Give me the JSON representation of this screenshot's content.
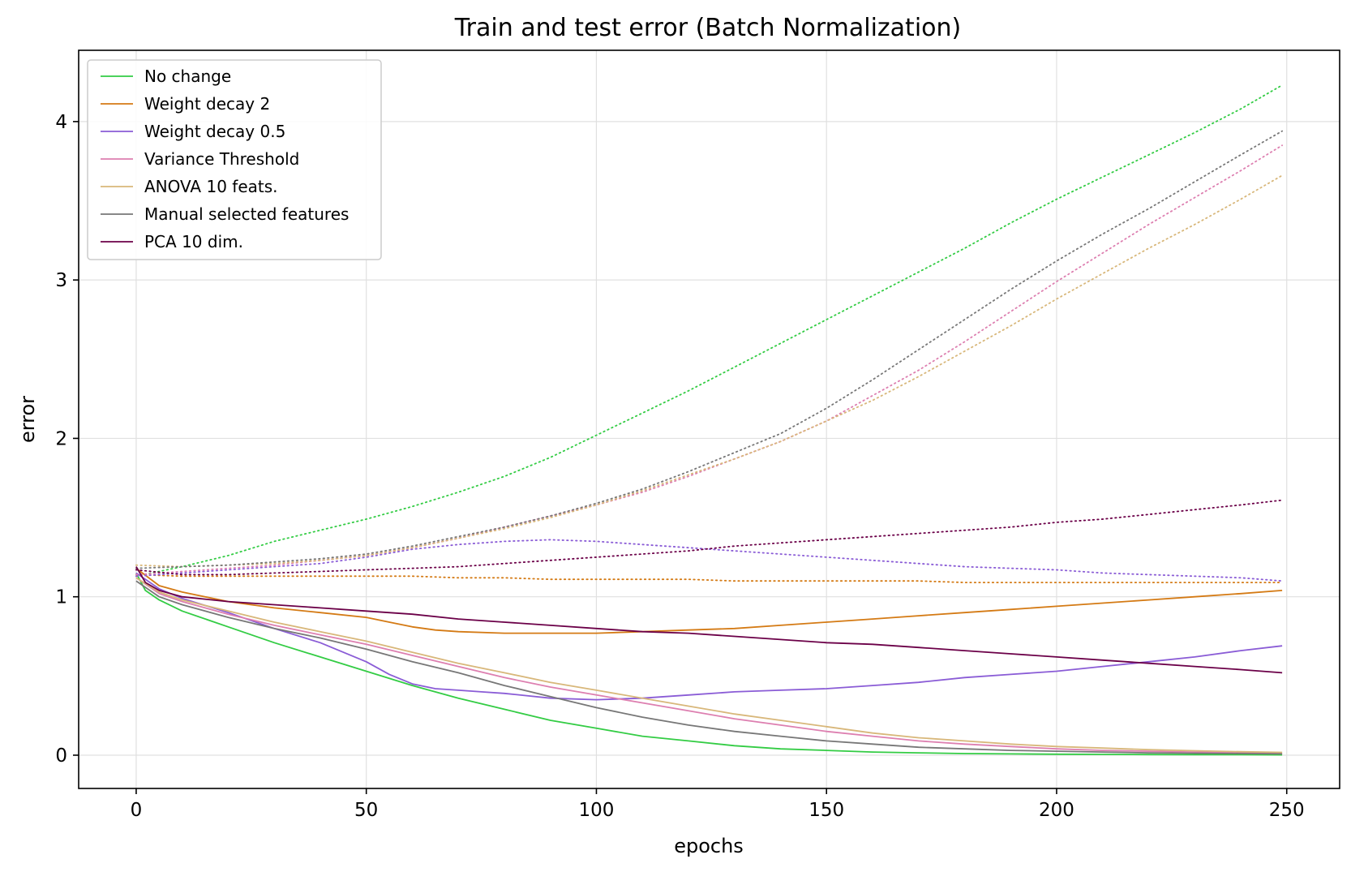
{
  "chart_data": {
    "type": "line",
    "title": "Train and test error (Batch Normalization)",
    "xlabel": "epochs",
    "ylabel": "error",
    "xlim": [
      -12.5,
      261.5
    ],
    "ylim": [
      -0.21,
      4.45
    ],
    "xticks": [
      0,
      50,
      100,
      150,
      200,
      250
    ],
    "yticks": [
      0,
      1,
      2,
      3,
      4
    ],
    "grid": true,
    "legend_position": "top-left",
    "line_styles": {
      "train": "solid",
      "test": "dotted"
    },
    "series": [
      {
        "name": "No change",
        "color": "#33cc44",
        "train": {
          "x": [
            0,
            2,
            5,
            10,
            20,
            30,
            40,
            50,
            60,
            70,
            80,
            90,
            100,
            110,
            120,
            130,
            140,
            150,
            160,
            170,
            180,
            190,
            200,
            210,
            220,
            230,
            240,
            249
          ],
          "y": [
            1.15,
            1.04,
            0.98,
            0.91,
            0.81,
            0.71,
            0.62,
            0.53,
            0.44,
            0.36,
            0.29,
            0.22,
            0.17,
            0.12,
            0.09,
            0.06,
            0.04,
            0.03,
            0.02,
            0.015,
            0.01,
            0.008,
            0.006,
            0.005,
            0.004,
            0.003,
            0.003,
            0.002
          ]
        },
        "test": {
          "x": [
            0,
            10,
            20,
            30,
            40,
            50,
            60,
            70,
            80,
            90,
            100,
            110,
            120,
            130,
            140,
            150,
            160,
            170,
            180,
            190,
            200,
            210,
            220,
            230,
            240,
            249
          ],
          "y": [
            1.13,
            1.19,
            1.26,
            1.35,
            1.42,
            1.49,
            1.57,
            1.66,
            1.76,
            1.88,
            2.02,
            2.16,
            2.3,
            2.45,
            2.6,
            2.75,
            2.9,
            3.05,
            3.2,
            3.36,
            3.51,
            3.65,
            3.79,
            3.93,
            4.08,
            4.23
          ]
        }
      },
      {
        "name": "Weight decay 2",
        "color": "#d47a14",
        "train": {
          "x": [
            0,
            5,
            10,
            20,
            30,
            40,
            50,
            55,
            60,
            65,
            70,
            80,
            90,
            100,
            110,
            120,
            130,
            140,
            150,
            160,
            170,
            180,
            190,
            200,
            210,
            220,
            230,
            240,
            249
          ],
          "y": [
            1.18,
            1.07,
            1.03,
            0.97,
            0.93,
            0.9,
            0.87,
            0.84,
            0.81,
            0.79,
            0.78,
            0.77,
            0.77,
            0.77,
            0.78,
            0.79,
            0.8,
            0.82,
            0.84,
            0.86,
            0.88,
            0.9,
            0.92,
            0.94,
            0.96,
            0.98,
            1.0,
            1.02,
            1.04
          ]
        },
        "test": {
          "x": [
            0,
            10,
            20,
            30,
            40,
            50,
            60,
            70,
            80,
            90,
            100,
            110,
            120,
            130,
            140,
            150,
            160,
            170,
            180,
            190,
            200,
            210,
            220,
            230,
            240,
            249
          ],
          "y": [
            1.14,
            1.13,
            1.13,
            1.13,
            1.13,
            1.13,
            1.13,
            1.12,
            1.12,
            1.11,
            1.11,
            1.11,
            1.11,
            1.1,
            1.1,
            1.1,
            1.1,
            1.1,
            1.09,
            1.09,
            1.09,
            1.09,
            1.09,
            1.09,
            1.09,
            1.09
          ]
        }
      },
      {
        "name": "Weight decay 0.5",
        "color": "#8a5cd6",
        "train": {
          "x": [
            0,
            5,
            10,
            20,
            30,
            40,
            50,
            55,
            60,
            65,
            70,
            75,
            80,
            90,
            100,
            110,
            120,
            130,
            140,
            150,
            160,
            170,
            180,
            190,
            200,
            210,
            220,
            230,
            240,
            249
          ],
          "y": [
            1.15,
            1.05,
            0.99,
            0.9,
            0.8,
            0.71,
            0.59,
            0.51,
            0.45,
            0.42,
            0.41,
            0.4,
            0.39,
            0.36,
            0.35,
            0.36,
            0.38,
            0.4,
            0.41,
            0.42,
            0.44,
            0.46,
            0.49,
            0.51,
            0.53,
            0.56,
            0.59,
            0.62,
            0.66,
            0.69
          ]
        },
        "test": {
          "x": [
            0,
            10,
            20,
            30,
            40,
            50,
            60,
            70,
            80,
            90,
            100,
            110,
            120,
            130,
            140,
            150,
            160,
            170,
            180,
            190,
            200,
            210,
            220,
            230,
            240,
            249
          ],
          "y": [
            1.13,
            1.15,
            1.17,
            1.19,
            1.21,
            1.25,
            1.3,
            1.33,
            1.35,
            1.36,
            1.35,
            1.33,
            1.31,
            1.29,
            1.27,
            1.25,
            1.23,
            1.21,
            1.19,
            1.18,
            1.17,
            1.15,
            1.14,
            1.13,
            1.12,
            1.1
          ]
        }
      },
      {
        "name": "Variance Threshold",
        "color": "#dd7fb0",
        "train": {
          "x": [
            0,
            5,
            10,
            20,
            30,
            40,
            50,
            60,
            70,
            80,
            90,
            100,
            110,
            120,
            130,
            140,
            150,
            160,
            170,
            180,
            190,
            200,
            210,
            220,
            230,
            240,
            249
          ],
          "y": [
            1.12,
            1.02,
            0.97,
            0.89,
            0.82,
            0.76,
            0.7,
            0.63,
            0.56,
            0.49,
            0.43,
            0.38,
            0.33,
            0.28,
            0.23,
            0.19,
            0.15,
            0.12,
            0.09,
            0.07,
            0.055,
            0.04,
            0.03,
            0.025,
            0.02,
            0.015,
            0.012
          ]
        },
        "test": {
          "x": [
            0,
            10,
            20,
            30,
            40,
            50,
            60,
            70,
            80,
            90,
            100,
            110,
            120,
            130,
            140,
            150,
            160,
            170,
            180,
            190,
            200,
            210,
            220,
            230,
            240,
            249
          ],
          "y": [
            1.14,
            1.16,
            1.18,
            1.2,
            1.23,
            1.26,
            1.31,
            1.37,
            1.44,
            1.51,
            1.58,
            1.66,
            1.76,
            1.87,
            1.98,
            2.11,
            2.27,
            2.43,
            2.61,
            2.8,
            2.99,
            3.17,
            3.35,
            3.52,
            3.69,
            3.85
          ]
        }
      },
      {
        "name": "ANOVA 10 feats.",
        "color": "#d8b77a",
        "train": {
          "x": [
            0,
            5,
            10,
            20,
            30,
            40,
            50,
            60,
            70,
            80,
            90,
            100,
            110,
            120,
            130,
            140,
            150,
            160,
            170,
            180,
            190,
            200,
            210,
            220,
            230,
            240,
            249
          ],
          "y": [
            1.12,
            1.03,
            0.98,
            0.91,
            0.84,
            0.78,
            0.72,
            0.65,
            0.58,
            0.52,
            0.46,
            0.41,
            0.36,
            0.31,
            0.26,
            0.22,
            0.18,
            0.14,
            0.11,
            0.09,
            0.07,
            0.055,
            0.045,
            0.035,
            0.028,
            0.022,
            0.018
          ]
        },
        "test": {
          "x": [
            0,
            10,
            20,
            30,
            40,
            50,
            60,
            70,
            80,
            90,
            100,
            110,
            120,
            130,
            140,
            150,
            160,
            170,
            180,
            190,
            200,
            210,
            220,
            230,
            240,
            249
          ],
          "y": [
            1.2,
            1.19,
            1.2,
            1.21,
            1.23,
            1.26,
            1.31,
            1.37,
            1.43,
            1.5,
            1.58,
            1.67,
            1.77,
            1.87,
            1.98,
            2.11,
            2.24,
            2.39,
            2.55,
            2.71,
            2.88,
            3.04,
            3.2,
            3.35,
            3.51,
            3.66
          ]
        }
      },
      {
        "name": "Manual selected features",
        "color": "#777777",
        "train": {
          "x": [
            0,
            5,
            10,
            20,
            30,
            40,
            50,
            60,
            70,
            80,
            90,
            100,
            110,
            120,
            130,
            140,
            150,
            160,
            170,
            180,
            190,
            200,
            210,
            220,
            230,
            240,
            249
          ],
          "y": [
            1.1,
            1.0,
            0.95,
            0.87,
            0.8,
            0.74,
            0.67,
            0.59,
            0.52,
            0.44,
            0.37,
            0.3,
            0.24,
            0.19,
            0.15,
            0.12,
            0.09,
            0.07,
            0.05,
            0.04,
            0.03,
            0.025,
            0.02,
            0.015,
            0.012,
            0.01,
            0.008
          ]
        },
        "test": {
          "x": [
            0,
            10,
            20,
            30,
            40,
            50,
            60,
            70,
            80,
            90,
            100,
            110,
            120,
            130,
            140,
            150,
            160,
            170,
            180,
            190,
            200,
            210,
            220,
            230,
            240,
            249
          ],
          "y": [
            1.18,
            1.19,
            1.2,
            1.22,
            1.24,
            1.27,
            1.32,
            1.38,
            1.44,
            1.51,
            1.59,
            1.68,
            1.79,
            1.91,
            2.03,
            2.19,
            2.37,
            2.56,
            2.75,
            2.94,
            3.12,
            3.29,
            3.45,
            3.62,
            3.79,
            3.94
          ]
        }
      },
      {
        "name": "PCA 10 dim.",
        "color": "#6b0048",
        "train": {
          "x": [
            0,
            2,
            5,
            10,
            20,
            30,
            40,
            50,
            60,
            70,
            80,
            90,
            100,
            110,
            120,
            130,
            140,
            150,
            160,
            170,
            180,
            190,
            200,
            210,
            220,
            230,
            240,
            249
          ],
          "y": [
            1.19,
            1.09,
            1.04,
            1.0,
            0.97,
            0.95,
            0.93,
            0.91,
            0.89,
            0.86,
            0.84,
            0.82,
            0.8,
            0.78,
            0.77,
            0.75,
            0.73,
            0.71,
            0.7,
            0.68,
            0.66,
            0.64,
            0.62,
            0.6,
            0.58,
            0.56,
            0.54,
            0.52
          ]
        },
        "test": {
          "x": [
            0,
            10,
            20,
            30,
            40,
            50,
            60,
            70,
            80,
            90,
            100,
            110,
            120,
            130,
            140,
            150,
            160,
            170,
            180,
            190,
            200,
            210,
            220,
            230,
            240,
            249
          ],
          "y": [
            1.17,
            1.14,
            1.14,
            1.15,
            1.16,
            1.17,
            1.18,
            1.19,
            1.21,
            1.23,
            1.25,
            1.27,
            1.29,
            1.32,
            1.34,
            1.36,
            1.38,
            1.4,
            1.42,
            1.44,
            1.47,
            1.49,
            1.52,
            1.55,
            1.58,
            1.61
          ]
        }
      }
    ]
  }
}
